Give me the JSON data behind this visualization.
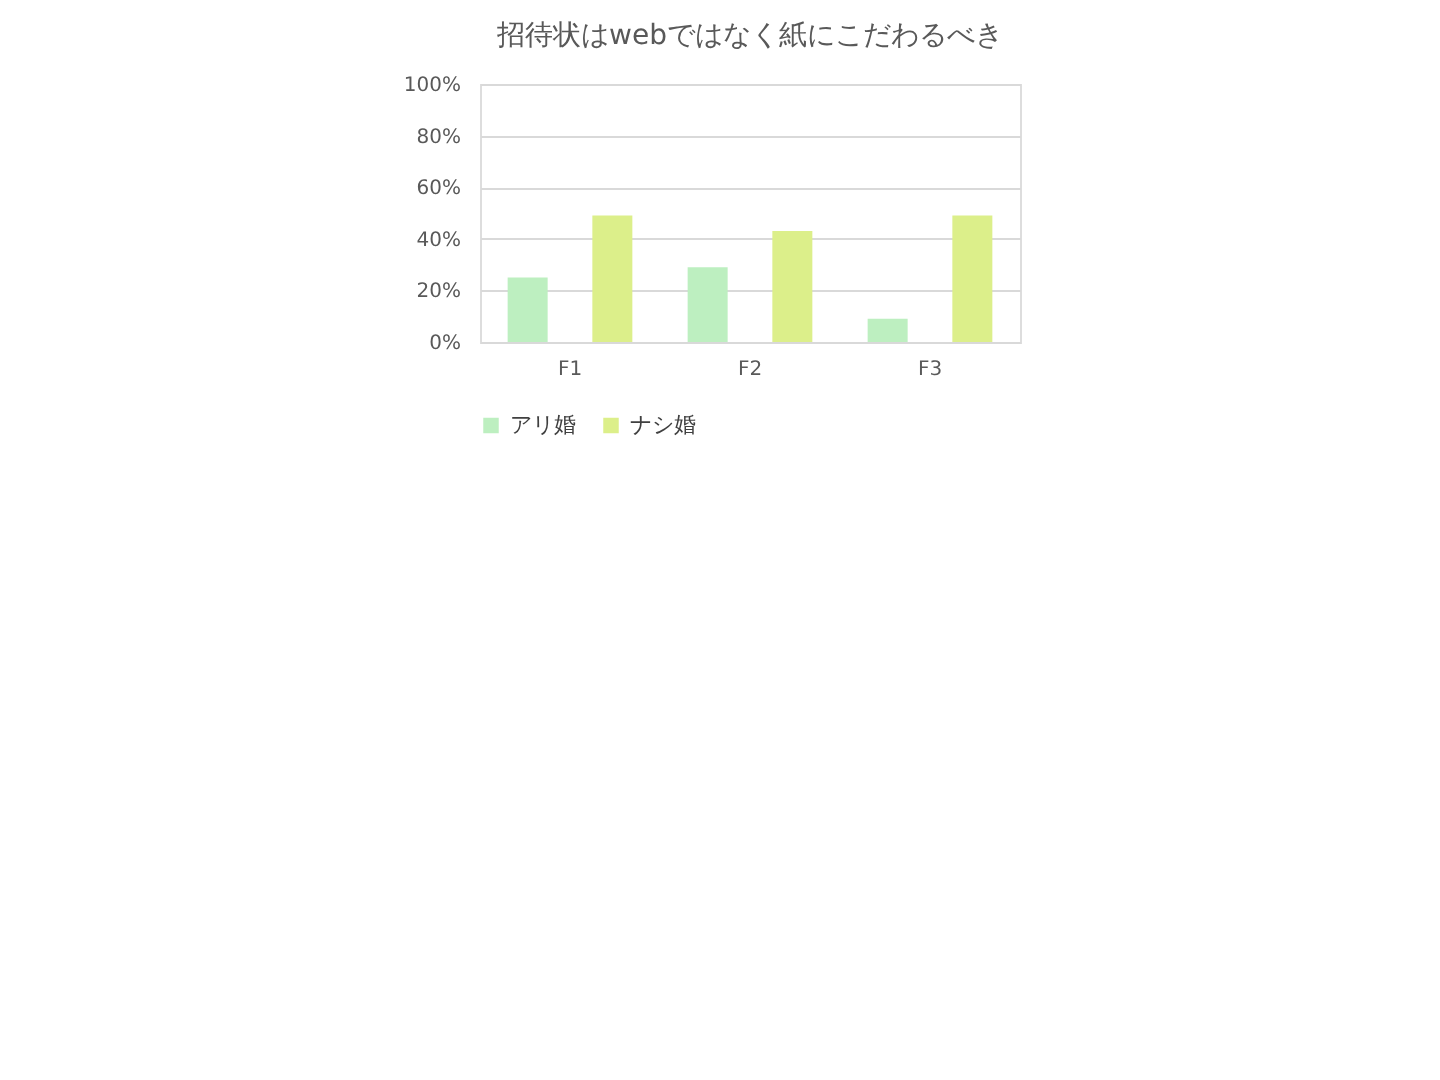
{
  "chart_data": {
    "type": "bar",
    "title": "招待状はwebではなく紙にこだわるべき",
    "categories": [
      "F1",
      "F2",
      "F3"
    ],
    "series": [
      {
        "name": "アリ婚",
        "color": "#bdefc0",
        "values": [
          25,
          29,
          9
        ]
      },
      {
        "name": "ナシ婚",
        "color": "#dcef8a",
        "values": [
          49,
          43,
          49
        ]
      }
    ],
    "ylim": [
      0,
      100
    ],
    "yticks": [
      {
        "value": 0,
        "label": "0%"
      },
      {
        "value": 20,
        "label": "20%"
      },
      {
        "value": 40,
        "label": "40%"
      },
      {
        "value": 60,
        "label": "60%"
      },
      {
        "value": 80,
        "label": "80%"
      },
      {
        "value": 100,
        "label": "100%"
      }
    ],
    "grid": "y",
    "legend": "bottom"
  }
}
